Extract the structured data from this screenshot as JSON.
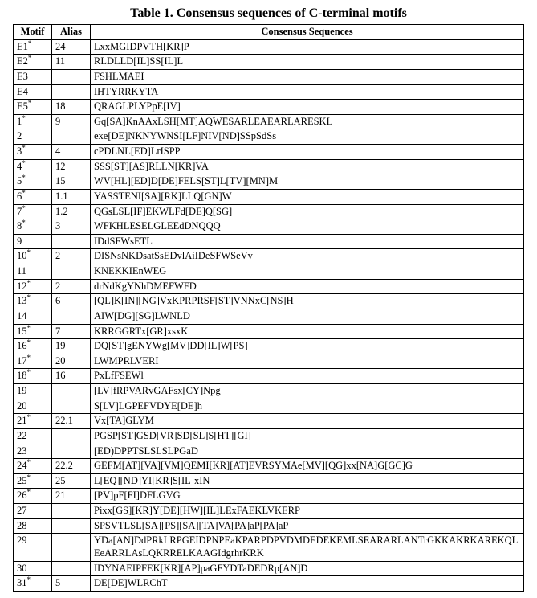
{
  "caption": "Table 1. Consensus sequences of C-terminal motifs",
  "headers": {
    "motif": "Motif",
    "alias": "Alias",
    "seq": "Consensus Sequences"
  },
  "rows": [
    {
      "motif": "E1",
      "star": true,
      "alias": "24",
      "seq": "LxxMGIDPVTH[KR]P"
    },
    {
      "motif": "E2",
      "star": true,
      "alias": "11",
      "seq": "RLDLLD[IL]SS[IL]L"
    },
    {
      "motif": "E3",
      "star": false,
      "alias": "",
      "seq": "FSHLMAEI"
    },
    {
      "motif": "E4",
      "star": false,
      "alias": "",
      "seq": "IHTYRRKYTA"
    },
    {
      "motif": "E5",
      "star": true,
      "alias": "18",
      "seq": "QRAGLPLYPpE[IV]"
    },
    {
      "motif": "1",
      "star": true,
      "alias": "9",
      "seq": "Gq[SA]KnAAxLSH[MT]AQWESARLEAEARLARESKL"
    },
    {
      "motif": "2",
      "star": false,
      "alias": "",
      "seq": "exe[DE]NKNYWNSI[LF]NIV[ND]SSpSdSs"
    },
    {
      "motif": "3",
      "star": true,
      "alias": "4",
      "seq": "cPDLNL[ED]LrISPP"
    },
    {
      "motif": "4",
      "star": true,
      "alias": "12",
      "seq": "SSS[ST][AS]RLLN[KR]VA"
    },
    {
      "motif": "5",
      "star": true,
      "alias": "15",
      "seq": "WV[HL][ED]D[DE]FELS[ST]L[TV][MN]M"
    },
    {
      "motif": "6",
      "star": true,
      "alias": "1.1",
      "seq": "YASSTENI[SA][RK]LLQ[GN]W"
    },
    {
      "motif": "7",
      "star": true,
      "alias": "1.2",
      "seq": "QGsLSL[IF]EKWLFd[DE]Q[SG]"
    },
    {
      "motif": "8",
      "star": true,
      "alias": "3",
      "seq": "WFKHLESELGLEEdDNQQQ"
    },
    {
      "motif": "9",
      "star": false,
      "alias": "",
      "seq": "IDdSFWsETL"
    },
    {
      "motif": "10",
      "star": true,
      "alias": "2",
      "seq": "DISNsNKDsatSsEDvlAiIDeSFWSeVv"
    },
    {
      "motif": "11",
      "star": false,
      "alias": "",
      "seq": "KNEKKIEnWEG"
    },
    {
      "motif": "12",
      "star": true,
      "alias": "2",
      "seq": "drNdKgYNhDMEFWFD"
    },
    {
      "motif": "13",
      "star": true,
      "alias": "6",
      "seq": "[QL]K[IN][NG]VxKPRPRSF[ST]VNNxC[NS]H"
    },
    {
      "motif": "14",
      "star": false,
      "alias": "",
      "seq": "AIW[DG][SG]LWNLD"
    },
    {
      "motif": "15",
      "star": true,
      "alias": "7",
      "seq": "KRRGGRTx[GR]xsxK"
    },
    {
      "motif": "16",
      "star": true,
      "alias": "19",
      "seq": "DQ[ST]gENYWg[MV]DD[IL]W[PS]"
    },
    {
      "motif": "17",
      "star": true,
      "alias": "20",
      "seq": "LWMPRLVERI"
    },
    {
      "motif": "18",
      "star": true,
      "alias": "16",
      "seq": "PxLfFSEWl"
    },
    {
      "motif": "19",
      "star": false,
      "alias": "",
      "seq": "[LV]fRPVARvGAFsx[CY]Npg"
    },
    {
      "motif": "20",
      "star": false,
      "alias": "",
      "seq": "S[LV]LGPEFVDYE[DE]h"
    },
    {
      "motif": "21",
      "star": true,
      "alias": "22.1",
      "seq": "Vx[TA]GLYM"
    },
    {
      "motif": "22",
      "star": false,
      "alias": "",
      "seq": "PGSP[ST]GSD[VR]SD[SL]S[HT][GI]"
    },
    {
      "motif": "23",
      "star": false,
      "alias": "",
      "seq": "[ED)DPPTSLSLSLPGaD"
    },
    {
      "motif": "24",
      "star": true,
      "alias": "22.2",
      "seq": "GEFM[AT][VA][VM]QEMI[KR][AT]EVRSYMAe[MV][QG]xx[NA]G[GC]G"
    },
    {
      "motif": "25",
      "star": true,
      "alias": "25",
      "seq": "L[EQ][ND]YI[KR]S[IL]xIN"
    },
    {
      "motif": "26",
      "star": true,
      "alias": "21",
      "seq": "[PV]pF[FI]DFLGVG"
    },
    {
      "motif": "27",
      "star": false,
      "alias": "",
      "seq": "Pixx[GS][KR]Y[DE][HW][IL]LExFAEKLVKERP"
    },
    {
      "motif": "28",
      "star": false,
      "alias": "",
      "seq": "SPSVTLSL[SA][PS][SA][TA]VA[PA]aP[PA]aP"
    },
    {
      "motif": "29",
      "star": false,
      "alias": "",
      "seq": "YDa[AN]DdPRkLRPGEIDPNPEaKPARPDPVDMDEDEKEMLSEARARLANTrGKKAKRKAREKQLEeARRLAsLQKRRELKAAGIdgrhrKRK"
    },
    {
      "motif": "30",
      "star": false,
      "alias": "",
      "seq": "IDYNAEIPFEK[KR][AP]paGFYDTaDEDRp[AN]D"
    },
    {
      "motif": "31",
      "star": true,
      "alias": "5",
      "seq": "DE[DE]WLRChT"
    }
  ]
}
